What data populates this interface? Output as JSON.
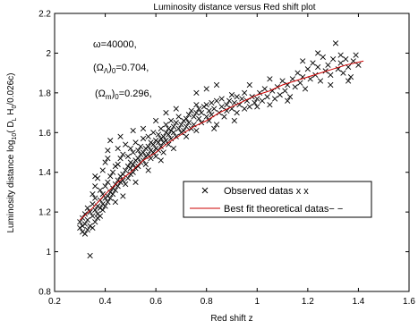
{
  "chart_data": {
    "type": "scatter",
    "title": "Luminosity distance  versus Red shift  plot",
    "xlabel": "Red shift z",
    "ylabel": "Luminosity distance log10( D_L H_0/0.026c)",
    "xlim": [
      0.2,
      1.6
    ],
    "ylim": [
      0.8,
      2.2
    ],
    "xticks": [
      "0.2",
      "0.4",
      "0.6",
      "0.8",
      "1",
      "1.2",
      "1.4",
      "1.6"
    ],
    "yticks": [
      "0.8",
      "1",
      "1.2",
      "1.4",
      "1.6",
      "1.8",
      "2",
      "2.2"
    ],
    "grid": false,
    "legend_position": "center-right",
    "annotations": {
      "omega": "ω=40000,",
      "omega_lambda": "(Ω_Λ)_0=0.704,",
      "omega_m": "(Ω_m)_0=0.296,"
    },
    "series": [
      {
        "name": "Observed datas x x",
        "marker": "x",
        "color": "#000000",
        "points": [
          [
            0.3,
            1.12
          ],
          [
            0.3,
            1.15
          ],
          [
            0.31,
            1.1
          ],
          [
            0.31,
            1.17
          ],
          [
            0.31,
            1.13
          ],
          [
            0.32,
            1.09
          ],
          [
            0.32,
            1.19
          ],
          [
            0.32,
            1.14
          ],
          [
            0.33,
            1.11
          ],
          [
            0.33,
            1.22
          ],
          [
            0.33,
            1.16
          ],
          [
            0.34,
            0.98
          ],
          [
            0.34,
            1.13
          ],
          [
            0.34,
            1.2
          ],
          [
            0.35,
            1.18
          ],
          [
            0.35,
            1.24
          ],
          [
            0.35,
            1.12
          ],
          [
            0.35,
            1.29
          ],
          [
            0.36,
            1.15
          ],
          [
            0.36,
            1.21
          ],
          [
            0.36,
            1.27
          ],
          [
            0.36,
            1.33
          ],
          [
            0.37,
            1.17
          ],
          [
            0.37,
            1.23
          ],
          [
            0.37,
            1.19
          ],
          [
            0.37,
            1.37
          ],
          [
            0.38,
            1.22
          ],
          [
            0.38,
            1.26
          ],
          [
            0.38,
            1.31
          ],
          [
            0.38,
            1.18
          ],
          [
            0.39,
            1.24
          ],
          [
            0.39,
            1.29
          ],
          [
            0.39,
            1.41
          ],
          [
            0.39,
            1.21
          ],
          [
            0.4,
            1.27
          ],
          [
            0.4,
            1.23
          ],
          [
            0.4,
            1.33
          ],
          [
            0.4,
            1.45
          ],
          [
            0.41,
            1.28
          ],
          [
            0.41,
            1.35
          ],
          [
            0.41,
            1.25
          ],
          [
            0.41,
            1.47
          ],
          [
            0.42,
            1.3
          ],
          [
            0.42,
            1.38
          ],
          [
            0.42,
            1.27
          ],
          [
            0.42,
            1.56
          ],
          [
            0.43,
            1.32
          ],
          [
            0.43,
            1.4
          ],
          [
            0.43,
            1.29
          ],
          [
            0.44,
            1.34
          ],
          [
            0.44,
            1.43
          ],
          [
            0.44,
            1.31
          ],
          [
            0.45,
            1.36
          ],
          [
            0.45,
            1.44
          ],
          [
            0.45,
            1.52
          ],
          [
            0.45,
            1.33
          ],
          [
            0.46,
            1.38
          ],
          [
            0.46,
            1.47
          ],
          [
            0.46,
            1.35
          ],
          [
            0.47,
            1.39
          ],
          [
            0.47,
            1.49
          ],
          [
            0.47,
            1.36
          ],
          [
            0.48,
            1.41
          ],
          [
            0.48,
            1.54
          ],
          [
            0.48,
            1.34
          ],
          [
            0.49,
            1.43
          ],
          [
            0.49,
            1.37
          ],
          [
            0.49,
            1.48
          ],
          [
            0.5,
            1.42
          ],
          [
            0.5,
            1.39
          ],
          [
            0.5,
            1.52
          ],
          [
            0.5,
            1.45
          ],
          [
            0.51,
            1.44
          ],
          [
            0.51,
            1.4
          ],
          [
            0.51,
            1.5
          ],
          [
            0.52,
            1.46
          ],
          [
            0.52,
            1.42
          ],
          [
            0.52,
            1.55
          ],
          [
            0.53,
            1.47
          ],
          [
            0.53,
            1.43
          ],
          [
            0.53,
            1.51
          ],
          [
            0.54,
            1.49
          ],
          [
            0.54,
            1.45
          ],
          [
            0.54,
            1.53
          ],
          [
            0.55,
            1.5
          ],
          [
            0.55,
            1.46
          ],
          [
            0.55,
            1.57
          ],
          [
            0.56,
            1.48
          ],
          [
            0.56,
            1.52
          ],
          [
            0.56,
            1.44
          ],
          [
            0.57,
            1.53
          ],
          [
            0.57,
            1.49
          ],
          [
            0.57,
            1.58
          ],
          [
            0.58,
            1.51
          ],
          [
            0.58,
            1.55
          ],
          [
            0.58,
            1.47
          ],
          [
            0.59,
            1.54
          ],
          [
            0.59,
            1.5
          ],
          [
            0.59,
            1.6
          ],
          [
            0.6,
            1.56
          ],
          [
            0.6,
            1.52
          ],
          [
            0.6,
            1.48
          ],
          [
            0.61,
            1.55
          ],
          [
            0.61,
            1.59
          ],
          [
            0.61,
            1.51
          ],
          [
            0.62,
            1.57
          ],
          [
            0.62,
            1.53
          ],
          [
            0.62,
            1.62
          ],
          [
            0.63,
            1.58
          ],
          [
            0.63,
            1.55
          ],
          [
            0.63,
            1.5
          ],
          [
            0.64,
            1.6
          ],
          [
            0.64,
            1.56
          ],
          [
            0.64,
            1.64
          ],
          [
            0.65,
            1.59
          ],
          [
            0.65,
            1.62
          ],
          [
            0.65,
            1.54
          ],
          [
            0.66,
            1.61
          ],
          [
            0.66,
            1.57
          ],
          [
            0.66,
            1.66
          ],
          [
            0.67,
            1.6
          ],
          [
            0.67,
            1.63
          ],
          [
            0.68,
            1.58
          ],
          [
            0.68,
            1.65
          ],
          [
            0.69,
            1.62
          ],
          [
            0.69,
            1.68
          ],
          [
            0.7,
            1.6
          ],
          [
            0.7,
            1.64
          ],
          [
            0.71,
            1.66
          ],
          [
            0.71,
            1.61
          ],
          [
            0.72,
            1.67
          ],
          [
            0.72,
            1.63
          ],
          [
            0.73,
            1.69
          ],
          [
            0.73,
            1.65
          ],
          [
            0.74,
            1.71
          ],
          [
            0.74,
            1.62
          ],
          [
            0.75,
            1.68
          ],
          [
            0.75,
            1.64
          ],
          [
            0.76,
            1.7
          ],
          [
            0.76,
            1.74
          ],
          [
            0.77,
            1.67
          ],
          [
            0.77,
            1.72
          ],
          [
            0.78,
            1.65
          ],
          [
            0.78,
            1.7
          ],
          [
            0.79,
            1.73
          ],
          [
            0.8,
            1.68
          ],
          [
            0.8,
            1.74
          ],
          [
            0.81,
            1.71
          ],
          [
            0.81,
            1.66
          ],
          [
            0.82,
            1.75
          ],
          [
            0.82,
            1.69
          ],
          [
            0.83,
            1.72
          ],
          [
            0.84,
            1.64
          ],
          [
            0.84,
            1.76
          ],
          [
            0.85,
            1.7
          ],
          [
            0.86,
            1.73
          ],
          [
            0.86,
            1.77
          ],
          [
            0.87,
            1.68
          ],
          [
            0.88,
            1.74
          ],
          [
            0.88,
            1.71
          ],
          [
            0.89,
            1.76
          ],
          [
            0.9,
            1.72
          ],
          [
            0.9,
            1.79
          ],
          [
            0.91,
            1.75
          ],
          [
            0.92,
            1.7
          ],
          [
            0.92,
            1.78
          ],
          [
            0.93,
            1.74
          ],
          [
            0.94,
            1.77
          ],
          [
            0.95,
            1.72
          ],
          [
            0.95,
            1.8
          ],
          [
            0.96,
            1.76
          ],
          [
            0.97,
            1.73
          ],
          [
            0.98,
            1.78
          ],
          [
            0.99,
            1.75
          ],
          [
            1.0,
            1.77
          ],
          [
            1.0,
            1.73
          ],
          [
            1.01,
            1.8
          ],
          [
            1.02,
            1.76
          ],
          [
            1.03,
            1.82
          ],
          [
            1.04,
            1.78
          ],
          [
            1.05,
            1.74
          ],
          [
            1.06,
            1.81
          ],
          [
            1.07,
            1.77
          ],
          [
            1.08,
            1.83
          ],
          [
            1.09,
            1.79
          ],
          [
            1.1,
            1.86
          ],
          [
            1.11,
            1.81
          ],
          [
            1.12,
            1.84
          ],
          [
            1.13,
            1.78
          ],
          [
            1.14,
            1.87
          ],
          [
            1.15,
            1.83
          ],
          [
            1.16,
            1.9
          ],
          [
            1.17,
            1.85
          ],
          [
            1.18,
            1.88
          ],
          [
            1.19,
            1.82
          ],
          [
            1.2,
            1.92
          ],
          [
            1.21,
            1.87
          ],
          [
            1.22,
            1.95
          ],
          [
            1.23,
            1.89
          ],
          [
            1.24,
            1.93
          ],
          [
            1.25,
            1.86
          ],
          [
            1.26,
            1.98
          ],
          [
            1.27,
            1.91
          ],
          [
            1.28,
            1.94
          ],
          [
            1.29,
            1.89
          ],
          [
            1.3,
            1.97
          ],
          [
            1.31,
            2.05
          ],
          [
            1.32,
            1.92
          ],
          [
            1.33,
            1.95
          ],
          [
            1.34,
            1.9
          ],
          [
            1.35,
            1.97
          ],
          [
            1.36,
            1.93
          ],
          [
            1.37,
            1.88
          ],
          [
            1.38,
            1.96
          ],
          [
            1.39,
            1.99
          ],
          [
            1.4,
            1.94
          ],
          [
            0.55,
            1.62
          ],
          [
            0.6,
            1.66
          ],
          [
            0.64,
            1.7
          ],
          [
            0.68,
            1.72
          ],
          [
            0.72,
            1.58
          ],
          [
            0.76,
            1.8
          ],
          [
            0.8,
            1.82
          ],
          [
            0.84,
            1.84
          ],
          [
            0.36,
            1.38
          ],
          [
            0.41,
            1.51
          ],
          [
            0.44,
            1.25
          ],
          [
            0.47,
            1.28
          ],
          [
            0.52,
            1.35
          ],
          [
            0.57,
            1.41
          ],
          [
            0.62,
            1.46
          ],
          [
            0.67,
            1.52
          ],
          [
            0.46,
            1.58
          ],
          [
            0.51,
            1.61
          ],
          [
            0.76,
            1.61
          ],
          [
            0.83,
            1.62
          ],
          [
            0.91,
            1.66
          ],
          [
            0.97,
            1.84
          ],
          [
            1.05,
            1.87
          ],
          [
            1.12,
            1.76
          ],
          [
            1.18,
            1.96
          ],
          [
            1.24,
            2.0
          ],
          [
            1.29,
            1.84
          ],
          [
            1.33,
            1.99
          ],
          [
            1.36,
            1.86
          ]
        ]
      },
      {
        "name": "Best fit theoretical datas− −",
        "marker": "line",
        "color": "#cc0000",
        "points": [
          [
            0.3,
            1.16
          ],
          [
            0.35,
            1.22
          ],
          [
            0.4,
            1.29
          ],
          [
            0.45,
            1.35
          ],
          [
            0.5,
            1.4
          ],
          [
            0.55,
            1.46
          ],
          [
            0.6,
            1.5
          ],
          [
            0.65,
            1.55
          ],
          [
            0.7,
            1.59
          ],
          [
            0.75,
            1.63
          ],
          [
            0.8,
            1.66
          ],
          [
            0.85,
            1.7
          ],
          [
            0.9,
            1.73
          ],
          [
            0.95,
            1.76
          ],
          [
            1.0,
            1.79
          ],
          [
            1.05,
            1.81
          ],
          [
            1.1,
            1.84
          ],
          [
            1.15,
            1.86
          ],
          [
            1.2,
            1.88
          ],
          [
            1.25,
            1.9
          ],
          [
            1.3,
            1.92
          ],
          [
            1.35,
            1.94
          ],
          [
            1.42,
            1.96
          ]
        ]
      }
    ]
  }
}
